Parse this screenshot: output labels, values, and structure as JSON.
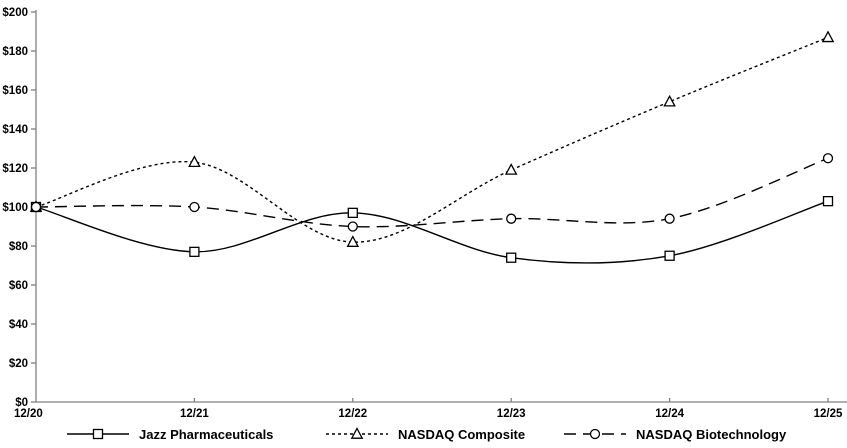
{
  "chart_data": {
    "type": "line",
    "title": "",
    "xlabel": "",
    "ylabel": "",
    "categories": [
      "12/20",
      "12/21",
      "12/22",
      "12/23",
      "12/24",
      "12/25"
    ],
    "series": [
      {
        "name": "Jazz Pharmaceuticals",
        "values": [
          100,
          77,
          97,
          74,
          75,
          103
        ],
        "marker": "square",
        "line_style": "solid"
      },
      {
        "name": "NASDAQ Composite",
        "values": [
          100,
          123,
          82,
          119,
          154,
          187
        ],
        "marker": "triangle",
        "line_style": "dotted"
      },
      {
        "name": "NASDAQ Biotechnology",
        "values": [
          100,
          100,
          90,
          94,
          94,
          125
        ],
        "marker": "circle",
        "line_style": "dashed"
      }
    ],
    "ylim": [
      0,
      200
    ],
    "ytick_step": 20,
    "ytick_labels": [
      "$0",
      "$20",
      "$40",
      "$60",
      "$80",
      "$100",
      "$120",
      "$140",
      "$160",
      "$180",
      "$200"
    ],
    "grid": false,
    "legend_position": "bottom",
    "colors": {
      "series_stroke": "#000000",
      "marker_fill": "#ffffff",
      "axis": "#808080",
      "text": "#000000",
      "background": "#ffffff"
    }
  }
}
